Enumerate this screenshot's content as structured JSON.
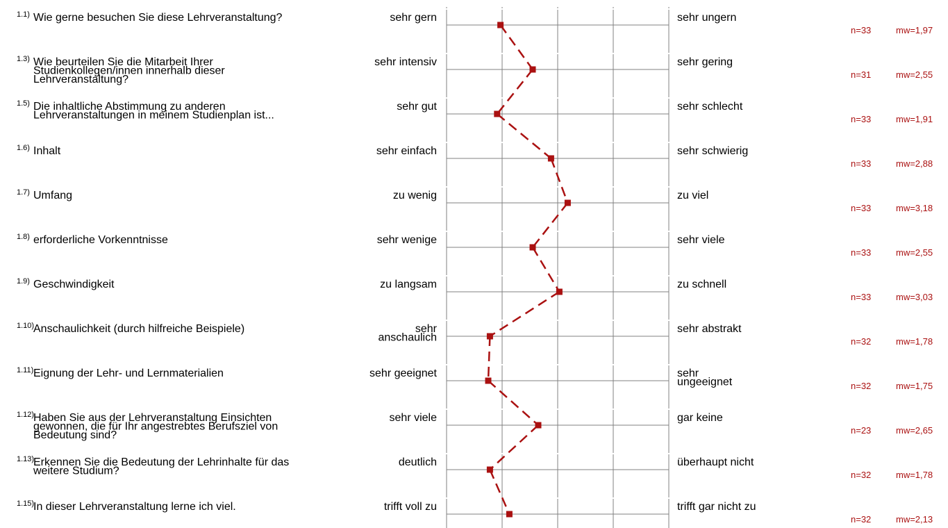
{
  "chart_data": {
    "type": "line",
    "scale": [
      1,
      5
    ],
    "colors": {
      "profile": "#aa1111",
      "stats": "#aa1111",
      "grid": "#808080"
    },
    "items": [
      {
        "num": "1.1)",
        "question": [
          "Wie gerne besuchen Sie diese Lehrveranstaltung?"
        ],
        "left": [
          "sehr gern"
        ],
        "right": [
          "sehr ungern"
        ],
        "n": "n=33",
        "mw": "mw=1,97",
        "value": 1.97
      },
      {
        "num": "1.3)",
        "question": [
          "Wie beurteilen Sie die Mitarbeit Ihrer",
          "Studienkollegen/innen innerhalb dieser",
          "Lehrveranstaltung?"
        ],
        "left": [
          "sehr intensiv"
        ],
        "right": [
          "sehr gering"
        ],
        "n": "n=31",
        "mw": "mw=2,55",
        "value": 2.55
      },
      {
        "num": "1.5)",
        "question": [
          "Die inhaltliche Abstimmung zu anderen",
          "Lehrveranstaltungen in meinem Studienplan ist..."
        ],
        "left": [
          "sehr gut"
        ],
        "right": [
          "sehr schlecht"
        ],
        "n": "n=33",
        "mw": "mw=1,91",
        "value": 1.91
      },
      {
        "num": "1.6)",
        "question": [
          "Inhalt"
        ],
        "left": [
          "sehr einfach"
        ],
        "right": [
          "sehr schwierig"
        ],
        "n": "n=33",
        "mw": "mw=2,88",
        "value": 2.88
      },
      {
        "num": "1.7)",
        "question": [
          "Umfang"
        ],
        "left": [
          "zu wenig"
        ],
        "right": [
          "zu viel"
        ],
        "n": "n=33",
        "mw": "mw=3,18",
        "value": 3.18
      },
      {
        "num": "1.8)",
        "question": [
          "erforderliche Vorkenntnisse"
        ],
        "left": [
          "sehr wenige"
        ],
        "right": [
          "sehr viele"
        ],
        "n": "n=33",
        "mw": "mw=2,55",
        "value": 2.55
      },
      {
        "num": "1.9)",
        "question": [
          "Geschwindigkeit"
        ],
        "left": [
          "zu langsam"
        ],
        "right": [
          "zu schnell"
        ],
        "n": "n=33",
        "mw": "mw=3,03",
        "value": 3.03
      },
      {
        "num": "1.10)",
        "question": [
          "Anschaulichkeit (durch hilfreiche Beispiele)"
        ],
        "left": [
          "sehr",
          "anschaulich"
        ],
        "right": [
          "sehr abstrakt"
        ],
        "n": "n=32",
        "mw": "mw=1,78",
        "value": 1.78
      },
      {
        "num": "1.11)",
        "question": [
          "Eignung der Lehr- und Lernmaterialien"
        ],
        "left": [
          "sehr geeignet"
        ],
        "right": [
          "sehr",
          "ungeeignet"
        ],
        "n": "n=32",
        "mw": "mw=1,75",
        "value": 1.75
      },
      {
        "num": "1.12)",
        "question": [
          "Haben Sie aus der Lehrveranstaltung Einsichten",
          "gewonnen, die für  Ihr angestrebtes Berufsziel von",
          "Bedeutung sind?"
        ],
        "left": [
          "sehr viele"
        ],
        "right": [
          "gar keine"
        ],
        "n": "n=23",
        "mw": "mw=2,65",
        "value": 2.65
      },
      {
        "num": "1.13)",
        "question": [
          "Erkennen Sie die Bedeutung der Lehrinhalte für das",
          "weitere Studium?"
        ],
        "left": [
          "deutlich"
        ],
        "right": [
          "überhaupt nicht"
        ],
        "n": "n=32",
        "mw": "mw=1,78",
        "value": 1.78
      },
      {
        "num": "1.15)",
        "question": [
          "In dieser Lehrveranstaltung lerne ich viel."
        ],
        "left": [
          "trifft voll zu"
        ],
        "right": [
          "trifft gar nicht zu"
        ],
        "n": "n=32",
        "mw": "mw=2,13",
        "value": 2.13
      }
    ]
  }
}
